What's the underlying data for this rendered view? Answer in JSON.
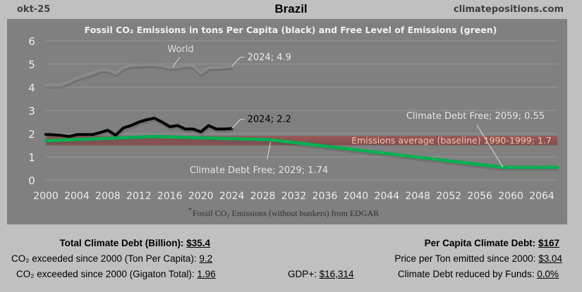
{
  "header": {
    "date": "okt-25",
    "country": "Brazil",
    "site": "climatepositions.com"
  },
  "chart_data": {
    "type": "line",
    "title": "Fossil CO₂ Emissions in tons Per Capita (black) and Free Level of Emissions (green)",
    "footnote_mark": "*",
    "footnote": "Fossil CO₂ Emissions (without bunkers) from EDGAR",
    "xlabel": "",
    "ylabel": "",
    "ylim": [
      0,
      6
    ],
    "xlim": [
      2000,
      2066
    ],
    "yticks": [
      "0",
      "1",
      "2",
      "3",
      "4",
      "5",
      "6"
    ],
    "xticks": [
      "2000",
      "2004",
      "2008",
      "2012",
      "2016",
      "2020",
      "2024",
      "2028",
      "2032",
      "2036",
      "2040",
      "2044",
      "2048",
      "2052",
      "2056",
      "2060",
      "2064"
    ],
    "grid": true,
    "baseline_band": {
      "label": "Emissions average (baseline) 1990-1999; 1.7",
      "value": 1.7,
      "low": 1.5,
      "high": 1.9,
      "color": "#a05050"
    },
    "series": [
      {
        "name": "World",
        "color": "#8a8a8a",
        "x": [
          2000,
          2001,
          2002,
          2003,
          2004,
          2005,
          2006,
          2007,
          2008,
          2009,
          2010,
          2011,
          2012,
          2013,
          2014,
          2015,
          2016,
          2017,
          2018,
          2019,
          2020,
          2021,
          2022,
          2023,
          2024
        ],
        "values": [
          4.1,
          4.1,
          4.1,
          4.25,
          4.4,
          4.5,
          4.6,
          4.75,
          4.75,
          4.6,
          4.85,
          4.95,
          4.95,
          4.97,
          4.97,
          4.93,
          4.85,
          4.88,
          4.93,
          4.93,
          4.6,
          4.85,
          4.85,
          4.87,
          4.9
        ],
        "label": "World",
        "end_label": "2024; 4.9"
      },
      {
        "name": "Brazil",
        "color": "#000000",
        "x": [
          2000,
          2001,
          2002,
          2003,
          2004,
          2005,
          2006,
          2007,
          2008,
          2009,
          2010,
          2011,
          2012,
          2013,
          2014,
          2015,
          2016,
          2017,
          2018,
          2019,
          2020,
          2021,
          2022,
          2023,
          2024
        ],
        "values": [
          1.97,
          1.95,
          1.93,
          1.88,
          1.96,
          1.96,
          1.96,
          2.05,
          2.15,
          1.93,
          2.25,
          2.35,
          2.5,
          2.6,
          2.67,
          2.5,
          2.3,
          2.35,
          2.2,
          2.2,
          2.08,
          2.35,
          2.2,
          2.2,
          2.22
        ],
        "end_label": "2024; 2.2"
      },
      {
        "name": "Free Level",
        "color": "#00b050",
        "x": [
          2000,
          2014,
          2029,
          2059,
          2066
        ],
        "values": [
          1.7,
          1.88,
          1.74,
          0.55,
          0.55
        ]
      }
    ],
    "annotations": [
      {
        "text": "Climate Debt Free; 2029; 1.74",
        "x": 2029,
        "y": 1.74
      },
      {
        "text": "Climate Debt Free; 2059; 0.55",
        "x": 2059,
        "y": 0.55
      }
    ]
  },
  "stats": {
    "total_debt_label": "Total Climate Debt (Billion):",
    "total_debt_value": "$35.4",
    "exceeded_pc_label": "CO₂ exceeded since 2000 (Ton Per Capita):",
    "exceeded_pc_value": "9.2",
    "exceeded_total_label": "CO₂ exceeded since 2000 (Gigaton Total):",
    "exceeded_total_value": "1.96",
    "gdp_label": "GDP+:",
    "gdp_value": "$16,314",
    "per_capita_label": "Per Capita Climate Debt:",
    "per_capita_value": "$167",
    "price_label": "Price per Ton emitted since 2000:",
    "price_value": "$3.04",
    "funds_label": "Climate Debt reduced by Funds:",
    "funds_value": "0.0%"
  }
}
